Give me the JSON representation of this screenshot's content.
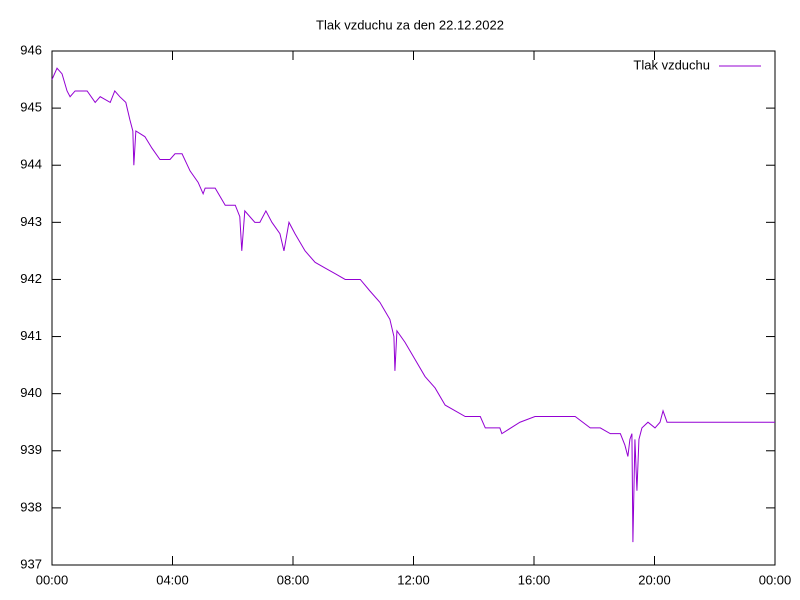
{
  "chart_data": {
    "type": "line",
    "title": "Tlak vzduchu za den 22.12.2022",
    "x": [
      0,
      10,
      20,
      30,
      36,
      46,
      70,
      86,
      96,
      116,
      125,
      135,
      147,
      155,
      161,
      163,
      167,
      185,
      199,
      215,
      235,
      245,
      259,
      275,
      291,
      301,
      305,
      325,
      345,
      365,
      374,
      378,
      384,
      404,
      414,
      426,
      438,
      454,
      462,
      472,
      484,
      504,
      524,
      544,
      564,
      584,
      614,
      633,
      653,
      673,
      681,
      683,
      687,
      703,
      723,
      743,
      763,
      783,
      803,
      823,
      853,
      863,
      892,
      896,
      932,
      962,
      1002,
      1042,
      1072,
      1092,
      1112,
      1132,
      1141,
      1147,
      1151,
      1155,
      1157,
      1161,
      1165,
      1169,
      1175,
      1187,
      1201,
      1211,
      1217,
      1225,
      1440
    ],
    "series": [
      {
        "name": "Tlak vzduchu",
        "color": "#9400d3",
        "values": [
          945.5,
          945.7,
          945.6,
          945.3,
          945.2,
          945.3,
          945.3,
          945.1,
          945.2,
          945.1,
          945.3,
          945.2,
          945.1,
          944.8,
          944.6,
          944.0,
          944.6,
          944.5,
          944.3,
          944.1,
          944.1,
          944.2,
          944.2,
          943.9,
          943.7,
          943.5,
          943.6,
          943.6,
          943.3,
          943.3,
          943.1,
          942.5,
          943.2,
          943.0,
          943.0,
          943.2,
          943.0,
          942.8,
          942.5,
          943.0,
          942.8,
          942.5,
          942.3,
          942.2,
          942.1,
          942.0,
          942.0,
          941.8,
          941.6,
          941.3,
          941.0,
          940.4,
          941.1,
          940.9,
          940.6,
          940.3,
          940.1,
          939.8,
          939.7,
          939.6,
          939.6,
          939.4,
          939.4,
          939.3,
          939.5,
          939.6,
          939.6,
          939.6,
          939.4,
          939.4,
          939.3,
          939.3,
          939.1,
          938.9,
          939.2,
          939.3,
          937.4,
          939.2,
          938.3,
          939.2,
          939.4,
          939.5,
          939.4,
          939.5,
          939.7,
          939.5,
          939.5
        ]
      }
    ],
    "xlim": [
      0,
      1440
    ],
    "xticks": [
      {
        "value": 0,
        "label": "00:00"
      },
      {
        "value": 240,
        "label": "04:00"
      },
      {
        "value": 480,
        "label": "08:00"
      },
      {
        "value": 720,
        "label": "12:00"
      },
      {
        "value": 960,
        "label": "16:00"
      },
      {
        "value": 1200,
        "label": "20:00"
      },
      {
        "value": 1440,
        "label": "00:00"
      }
    ],
    "ylim": [
      937,
      946
    ],
    "yticks": [
      937,
      938,
      939,
      940,
      941,
      942,
      943,
      944,
      945,
      946
    ],
    "legend": "top-right"
  }
}
